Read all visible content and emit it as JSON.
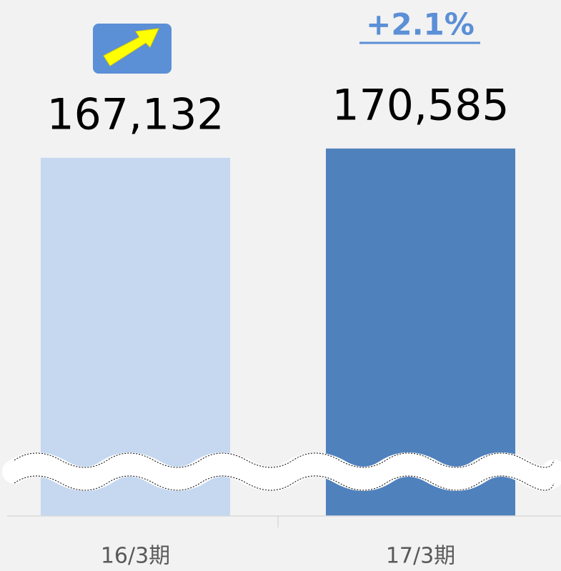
{
  "chart_data": {
    "type": "bar",
    "categories": [
      "16/3期",
      "17/3期"
    ],
    "values": [
      167132,
      170585
    ],
    "value_labels": [
      "167,132",
      "170,585"
    ],
    "colors": [
      "#c5d8f0",
      "#4f81bd"
    ],
    "ylim": [
      34000,
      172000
    ],
    "annotation": "+2.1%"
  }
}
